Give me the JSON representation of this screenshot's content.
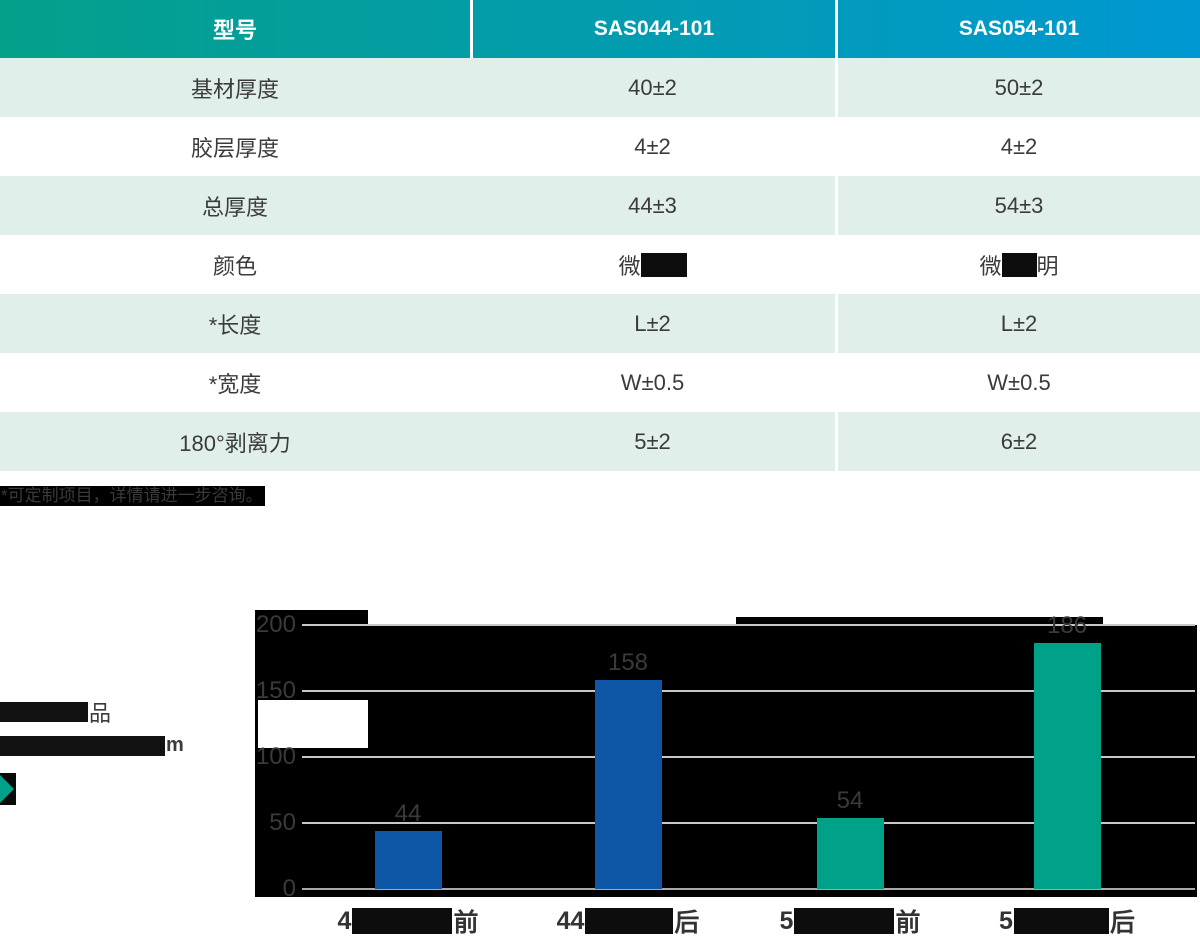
{
  "table": {
    "header": {
      "col0": "型号",
      "col1": "SAS044-101",
      "col2": "SAS054-101"
    },
    "rows": [
      {
        "label": "基材厚度",
        "v1": "40±2",
        "v2": "50±2"
      },
      {
        "label": "胶层厚度",
        "v1": "4±2",
        "v2": "4±2"
      },
      {
        "label": "总厚度",
        "v1": "44±3",
        "v2": "54±3"
      },
      {
        "label": "颜色",
        "v1_prefix": "微",
        "v1_suffix": "",
        "v2_prefix": "微",
        "v2_suffix": "明"
      },
      {
        "label": "*长度",
        "v1": "L±2",
        "v2": "L±2"
      },
      {
        "label": "*宽度",
        "v1": "W±0.5",
        "v2": "W±0.5"
      },
      {
        "label": "180°剥离力",
        "v1": "5±2",
        "v2": "6±2"
      }
    ],
    "footnote": "*可定制项目，详情请进一步咨询。"
  },
  "left_panel": {
    "line1_suffix": "品",
    "line2_suffix": "m"
  },
  "colors": {
    "header_gradient_left": "#05a08a",
    "header_gradient_right": "#0098d2",
    "row_mint": "#e1efeb",
    "text_dark": "#3b3b3b",
    "bar_blue": "#0e57a6",
    "bar_teal": "#00a189",
    "chart_panel": "#000000",
    "gridline": "#c8c8c8"
  },
  "chart_data": {
    "type": "bar",
    "categories": [
      {
        "prefix": "4",
        "suffix": "前"
      },
      {
        "prefix": "44",
        "suffix": "后"
      },
      {
        "prefix": "5",
        "suffix": "前"
      },
      {
        "prefix": "5",
        "suffix": "后"
      }
    ],
    "values": [
      44,
      158,
      54,
      186
    ],
    "bar_colors": [
      "#0e57a6",
      "#0e57a6",
      "#00a189",
      "#00a189"
    ],
    "value_labels": [
      "44",
      "158",
      "54",
      "186"
    ],
    "yticks": [
      0,
      50,
      100,
      150,
      200
    ],
    "ylim": [
      0,
      200
    ],
    "grid": true,
    "legend": false,
    "title": "",
    "xlabel": "",
    "ylabel": ""
  }
}
